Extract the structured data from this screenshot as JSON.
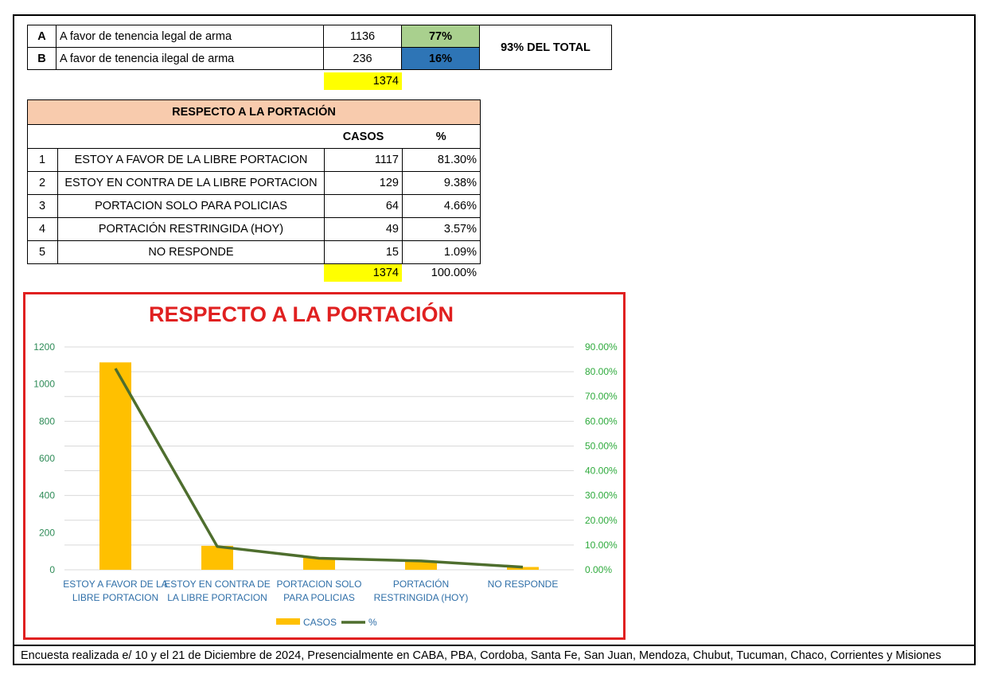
{
  "summary": {
    "rows": [
      {
        "label": "A",
        "desc": "A favor de tenencia legal de arma",
        "count": "1136",
        "pct": "77%"
      },
      {
        "label": "B",
        "desc": "A favor de tenencia ilegal de arma",
        "count": "236",
        "pct": "16%"
      }
    ],
    "total_note": "93% DEL TOTAL",
    "sum": "1374",
    "colors": {
      "a": "#a9d08e",
      "b": "#2e75b6",
      "highlight": "#ffff00"
    }
  },
  "portacion_table": {
    "title": "RESPECTO A LA PORTACIÓN",
    "col_cases": "CASOS",
    "col_pct": "%",
    "rows": [
      {
        "idx": "1",
        "cat": "ESTOY A FAVOR DE LA LIBRE PORTACION",
        "cases": "1117",
        "pct": "81.30%"
      },
      {
        "idx": "2",
        "cat": "ESTOY EN CONTRA DE LA LIBRE PORTACION",
        "cases": "129",
        "pct": "9.38%"
      },
      {
        "idx": "3",
        "cat": "PORTACION SOLO PARA POLICIAS",
        "cases": "64",
        "pct": "4.66%"
      },
      {
        "idx": "4",
        "cat": "PORTACIÓN RESTRINGIDA (HOY)",
        "cases": "49",
        "pct": "3.57%"
      },
      {
        "idx": "5",
        "cat": "NO RESPONDE",
        "cases": "15",
        "pct": "1.09%"
      }
    ],
    "sum_cases": "1374",
    "sum_pct": "100.00%",
    "header_color": "#f8cbad"
  },
  "chart_data": {
    "type": "bar",
    "title": "RESPECTO A LA PORTACIÓN",
    "categories": [
      [
        "ESTOY A FAVOR DE LA",
        "LIBRE PORTACION"
      ],
      [
        "ESTOY EN CONTRA DE",
        "LA LIBRE PORTACION"
      ],
      [
        "PORTACION SOLO",
        "PARA POLICIAS"
      ],
      [
        "PORTACIÓN",
        "RESTRINGIDA (HOY)"
      ],
      [
        "NO RESPONDE"
      ]
    ],
    "series": [
      {
        "name": "CASOS",
        "type": "bar",
        "axis": "left",
        "color": "#ffc000",
        "values": [
          1117,
          129,
          64,
          49,
          15
        ]
      },
      {
        "name": "%",
        "type": "line",
        "axis": "right",
        "color": "#4e6e2e",
        "values": [
          81.3,
          9.38,
          4.66,
          3.57,
          1.09
        ]
      }
    ],
    "ylim_left": [
      0,
      1200
    ],
    "yticks_left": [
      0,
      200,
      400,
      600,
      800,
      1000,
      1200
    ],
    "ylim_right": [
      0,
      90
    ],
    "yticks_right": [
      "0.00%",
      "10.00%",
      "20.00%",
      "30.00%",
      "40.00%",
      "50.00%",
      "60.00%",
      "70.00%",
      "80.00%",
      "90.00%"
    ],
    "legend_position": "bottom",
    "grid": true,
    "title_color": "#e02020",
    "left_tick_color": "#2e8b57",
    "right_tick_color": "#2eaa3c",
    "category_label_color": "#2f6fa8"
  },
  "footer": "Encuesta realizada e/ 10 y el 21 de Diciembre de 2024, Presencialmente en CABA, PBA, Cordoba, Santa Fe, San Juan, Mendoza, Chubut, Tucuman, Chaco, Corrientes y Misiones"
}
